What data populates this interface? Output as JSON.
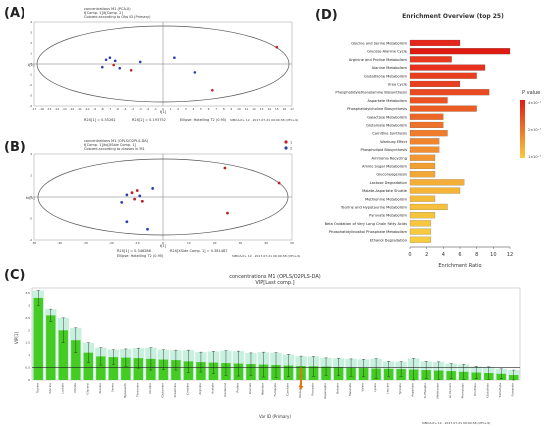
{
  "labels": {
    "a": "(A)",
    "b": "(B)",
    "c": "(C)",
    "d": "(D)"
  },
  "panelA": {
    "header": [
      "concentrations M1 (PCA-X)",
      "t[Comp. 1]/t[Comp. 2]",
      "Colored according to Obs ID (Primary)"
    ],
    "footer": [
      "R2X[1] = 0.55261",
      "R2X[2] = 0.193752",
      "Ellipse: Hotelling T2 (0.95)",
      "SIMCA-P+ 12 - 2017-07-21 09:00:38 (UTC+9)"
    ],
    "xlabel": "t[1]",
    "ylabel": "t[2]",
    "xticks": [
      "-17",
      "-16",
      "-15",
      "-14",
      "-13",
      "-12",
      "-11",
      "-10",
      "-9",
      "-8",
      "-7",
      "-6",
      "-5",
      "-4",
      "-3",
      "-2",
      "-1",
      "0",
      "1",
      "2",
      "3",
      "4",
      "5",
      "6",
      "7",
      "8",
      "9",
      "10",
      "11",
      "12",
      "13",
      "14",
      "15",
      "16",
      "17"
    ],
    "yticks": [
      "4",
      "3",
      "2",
      "1",
      "0",
      "-1",
      "-2",
      "-3",
      "-4"
    ],
    "points": [
      {
        "x": -8,
        "y": -0.3,
        "c": "#2a3fb0"
      },
      {
        "x": -7.5,
        "y": 0.4,
        "c": "#2a3fb0"
      },
      {
        "x": -7,
        "y": 0.6,
        "c": "#2a3fb0"
      },
      {
        "x": -6.5,
        "y": -0.1,
        "c": "#c02020"
      },
      {
        "x": -6.3,
        "y": 0.3,
        "c": "#2a3fb0"
      },
      {
        "x": -5.7,
        "y": -0.4,
        "c": "#2a3fb0"
      },
      {
        "x": -4.2,
        "y": -0.6,
        "c": "#c02020"
      },
      {
        "x": -3,
        "y": 0.2,
        "c": "#2a3fb0"
      },
      {
        "x": 1.5,
        "y": 0.6,
        "c": "#2a3fb0"
      },
      {
        "x": 4.2,
        "y": -0.8,
        "c": "#2a3fb0"
      },
      {
        "x": 6.5,
        "y": -2.5,
        "c": "#c02020"
      },
      {
        "x": 15,
        "y": 1.6,
        "c": "#c02020"
      }
    ]
  },
  "panelB": {
    "header": [
      "concentrations M1 (OPLS/O2PLS-DA)",
      "t[Comp. 1]/to[XSide Comp. 1]",
      "Colored according to classes in M1"
    ],
    "legend": [
      {
        "label": "1",
        "c": "#c02020"
      },
      {
        "label": "2",
        "c": "#2a3fb0"
      }
    ],
    "footer": [
      "R2X[1] = 0.346286",
      "R2X[XSide Comp. 1] = 0.381487",
      "Ellipse: Hotelling T2 (0.95)",
      "SIMCA-P+ 12 - 2017-07-21 09:00:38 (UTC+9)"
    ],
    "xlabel": "t[1]",
    "ylabel": "to[1]",
    "xticks": [
      "-50",
      "-40",
      "-30",
      "-20",
      "-10",
      "0",
      "10",
      "20",
      "30",
      "40",
      "50"
    ],
    "yticks": [
      "4",
      "2",
      "0",
      "-2",
      "-4"
    ],
    "points": [
      {
        "x": -16,
        "y": -0.5,
        "c": "#2a3fb0"
      },
      {
        "x": -14,
        "y": 0.2,
        "c": "#2a3fb0"
      },
      {
        "x": -12,
        "y": 0.4,
        "c": "#c02020"
      },
      {
        "x": -11,
        "y": -0.2,
        "c": "#c02020"
      },
      {
        "x": -10,
        "y": 0.6,
        "c": "#c02020"
      },
      {
        "x": -9,
        "y": 0.1,
        "c": "#2a3fb0"
      },
      {
        "x": -8,
        "y": -0.4,
        "c": "#c02020"
      },
      {
        "x": -4,
        "y": 0.8,
        "c": "#2a3fb0"
      },
      {
        "x": -6,
        "y": -3,
        "c": "#2a3fb0"
      },
      {
        "x": -14,
        "y": -2.3,
        "c": "#2a3fb0"
      },
      {
        "x": 24,
        "y": 2.7,
        "c": "#c02020"
      },
      {
        "x": 25,
        "y": -1.5,
        "c": "#c02020"
      },
      {
        "x": 45,
        "y": 1.3,
        "c": "#c02020"
      }
    ]
  },
  "panelC": {
    "header": [
      "concentrations M1 (OPLS/O2PLS-DA)",
      "VIP[Last comp.]"
    ],
    "ylabel": "VIP[1]",
    "xlabel": "Var ID (Primary)",
    "footer": "SIMCA-P+ 12 - 2017-07-21 09:00:38 (UTC+9)",
    "yticks": [
      "3.5",
      "3",
      "2.5",
      "2",
      "1.5",
      "1",
      "0.5",
      "0"
    ],
    "ylim": [
      0,
      3.7
    ],
    "categories": [
      "Taurine",
      "Glycine",
      "Lactate",
      "Citrate",
      "Glycerol",
      "Alanine",
      "Serine",
      "Hypoxanth",
      "Threonine",
      "Choline",
      "Glutamine",
      "Creatinine",
      "Creatine",
      "Arginine",
      "Acetate",
      "Isovalerat",
      "Proline",
      "Glucose",
      "Histidine",
      "Fumarate",
      "Carnitine",
      "Glutamate",
      "Pyruvate",
      "Asparagine",
      "Betaine",
      "Malonate",
      "Valine",
      "Lysine",
      "Leucine",
      "Tyrosine",
      "Aspartate",
      "O-Phospho",
      "Methionine",
      "sn-Glycero",
      "Phenylalan",
      "Ornithine",
      "Glutathion",
      "Trimethyla",
      "Fumarate"
    ],
    "values": [
      3.3,
      2.6,
      2.0,
      1.6,
      1.1,
      0.95,
      0.92,
      0.9,
      0.88,
      0.85,
      0.82,
      0.8,
      0.75,
      0.72,
      0.7,
      0.68,
      0.66,
      0.64,
      0.62,
      0.6,
      0.58,
      0.56,
      0.55,
      0.54,
      0.52,
      0.5,
      0.48,
      0.46,
      0.45,
      0.44,
      0.42,
      0.4,
      0.38,
      0.36,
      0.33,
      0.3,
      0.28,
      0.25,
      0.2
    ],
    "errors": [
      0.3,
      0.25,
      0.5,
      0.5,
      0.4,
      0.35,
      0.3,
      0.35,
      0.4,
      0.45,
      0.4,
      0.4,
      0.45,
      0.4,
      0.45,
      0.5,
      0.5,
      0.45,
      0.5,
      0.5,
      0.45,
      0.4,
      0.4,
      0.35,
      0.35,
      0.35,
      0.35,
      0.4,
      0.3,
      0.3,
      0.45,
      0.35,
      0.35,
      0.3,
      0.3,
      0.25,
      0.25,
      0.2,
      0.2
    ],
    "threshold": 0.5,
    "marker_index": 21
  },
  "chart_data": {
    "type": "bar",
    "title": "Enrichment Overview (top 25)",
    "xlabel": "Enrichment Ratio",
    "xlim": [
      0,
      12
    ],
    "xticks": [
      "0",
      "2",
      "4",
      "6",
      "8",
      "10",
      "12"
    ],
    "legend_title": "P value",
    "legend_ticks": [
      "4×10⁻¹",
      "2×10⁻¹",
      "1×10⁻¹"
    ],
    "categories": [
      "Glycine and Serine Metabolism",
      "Glucose-Alanine Cycle",
      "Arginine and Proline Metabolism",
      "Alanine Metabolism",
      "Glutathione Metabolism",
      "Urea Cycle",
      "Phosphatidylethanolamine Biosynthesis",
      "Aspartate Metabolism",
      "Phosphatidylcholine Biosynthesis",
      "Galactose Metabolism",
      "Glutamate Metabolism",
      "Carnitine Synthesis",
      "Warburg Effect",
      "Phospholipid Biosynthesis",
      "Ammonia Recycling",
      "Amino Sugar Metabolism",
      "Gluconeogenesis",
      "Lactose Degradation",
      "Malate-Aspartate Shuttle",
      "Methionine Metabolism",
      "Taurine and Hypotaurine Metabolism",
      "Pyruvate Metabolism",
      "Beta Oxidation of Very Long Chain Fatty Acids",
      "Phosphatidylinositol Phosphate Metabolism",
      "Ethanol Degradation"
    ],
    "values": [
      6.0,
      12.0,
      5.0,
      9.0,
      8.0,
      6.0,
      9.5,
      4.5,
      8.0,
      4.0,
      4.0,
      4.5,
      3.5,
      3.5,
      3.0,
      3.0,
      3.0,
      6.5,
      6.0,
      3.0,
      4.5,
      3.0,
      2.5,
      2.5,
      2.5
    ],
    "colors": [
      "#e5261b",
      "#dd1d14",
      "#e73820",
      "#e6311e",
      "#e8401f",
      "#e8401f",
      "#ea4a22",
      "#eb5322",
      "#ec5d24",
      "#ed6726",
      "#ee7229",
      "#ef7b2b",
      "#f0852d",
      "#f18e2f",
      "#f29731",
      "#f29f33",
      "#f3a735",
      "#f4ae37",
      "#f5b438",
      "#f5ba3a",
      "#f6bf3c",
      "#f6c33d",
      "#f7c63e",
      "#f7c940",
      "#f8cc41"
    ]
  }
}
